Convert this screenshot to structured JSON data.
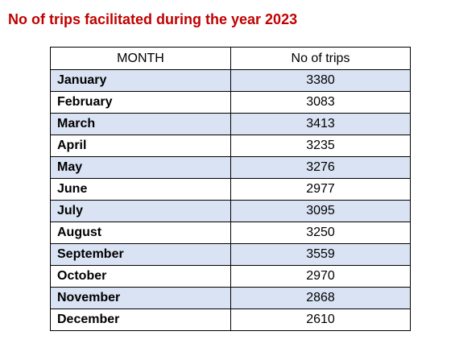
{
  "header": {
    "title": "No of trips facilitated during the year 2023"
  },
  "table": {
    "columns": [
      "MONTH",
      "No of trips"
    ],
    "rows": [
      [
        "January",
        3380
      ],
      [
        "February",
        3083
      ],
      [
        "March",
        3413
      ],
      [
        "April",
        3235
      ],
      [
        "May",
        3276
      ],
      [
        "June",
        2977
      ],
      [
        "July",
        3095
      ],
      [
        "August",
        3250
      ],
      [
        "September",
        3559
      ],
      [
        "October",
        2970
      ],
      [
        "November",
        2868
      ],
      [
        "December",
        2610
      ]
    ]
  }
}
